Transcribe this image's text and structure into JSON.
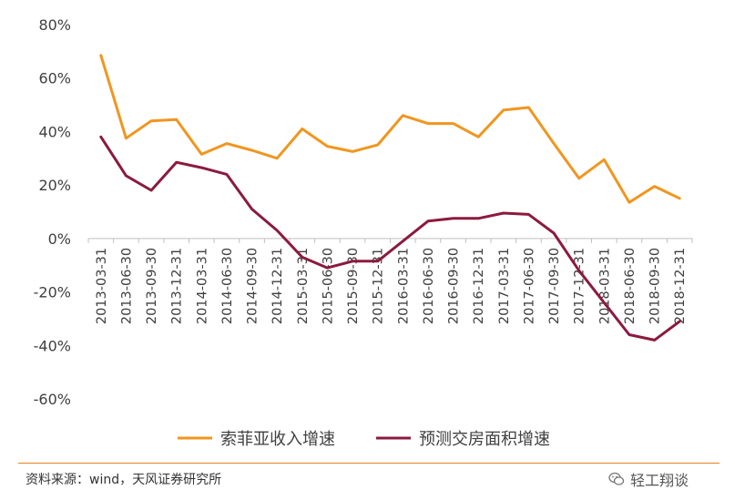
{
  "chart_data": {
    "type": "line",
    "categories": [
      "2013-03-31",
      "2013-06-30",
      "2013-09-30",
      "2013-12-31",
      "2014-03-31",
      "2014-06-30",
      "2014-09-30",
      "2014-12-31",
      "2015-03-31",
      "2015-06-30",
      "2015-09-30",
      "2015-12-31",
      "2016-03-31",
      "2016-06-30",
      "2016-09-30",
      "2016-12-31",
      "2017-03-31",
      "2017-06-30",
      "2017-09-30",
      "2017-12-31",
      "2018-03-31",
      "2018-06-30",
      "2018-09-30",
      "2018-12-31"
    ],
    "series": [
      {
        "name": "索菲亚收入增速",
        "color": "#F0961E",
        "values": [
          68.5,
          37.5,
          44,
          44.5,
          31.5,
          35.5,
          33,
          30,
          41,
          34.5,
          32.5,
          35,
          46,
          43,
          43,
          38,
          48,
          49,
          35.5,
          22.5,
          29.5,
          13.5,
          19.5,
          15
        ]
      },
      {
        "name": "预测交房面积增速",
        "color": "#8B1A3E",
        "values": [
          38,
          23.5,
          18,
          28.5,
          26.5,
          24,
          11,
          3,
          -7,
          -11,
          -8.5,
          -8.5,
          -1,
          6.5,
          7.5,
          7.5,
          9.5,
          9,
          2,
          -12,
          -24,
          -36,
          -38,
          -31
        ]
      }
    ],
    "yticks": [
      "80%",
      "60%",
      "40%",
      "20%",
      "0%",
      "-20%",
      "-40%",
      "-60%"
    ],
    "ylim": [
      -60,
      80
    ],
    "legend_position": "bottom",
    "grid": false
  },
  "footer": {
    "source": "资料来源：wind，天风证券研究所",
    "brand": "轻工翔谈"
  }
}
